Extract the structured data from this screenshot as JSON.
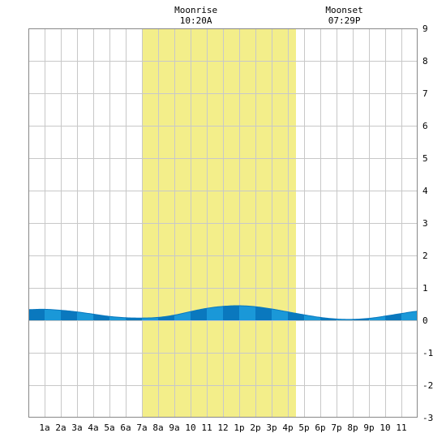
{
  "chart_data": {
    "type": "area",
    "title": "",
    "xlabel": "",
    "ylabel": "",
    "x_tick_labels": [
      "1a",
      "2a",
      "3a",
      "4a",
      "5a",
      "6a",
      "7a",
      "8a",
      "9a",
      "10",
      "11",
      "12",
      "1p",
      "2p",
      "3p",
      "4p",
      "5p",
      "6p",
      "7p",
      "8p",
      "9p",
      "10",
      "11"
    ],
    "xlim": [
      0,
      24
    ],
    "ylim": [
      -3,
      9
    ],
    "y_ticks": [
      9,
      8,
      7,
      6,
      5,
      4,
      3,
      2,
      1,
      0,
      -1,
      -2,
      -3
    ],
    "grid": true,
    "daylight_band": {
      "start_hour": 7.0,
      "end_hour": 16.5
    },
    "annotations": [
      {
        "name": "moonrise",
        "label": "Moonrise",
        "time": "10:20A",
        "hour": 10.33
      },
      {
        "name": "moonset",
        "label": "Moonset",
        "time": "07:29P",
        "hour": 19.48
      }
    ],
    "series": [
      {
        "x": [
          0,
          1,
          2,
          3,
          4,
          5,
          6,
          7,
          8,
          9,
          10,
          11,
          12,
          13,
          14,
          15,
          16,
          17,
          18,
          19,
          20,
          21,
          22,
          23,
          24
        ],
        "y": [
          0.33,
          0.34,
          0.31,
          0.26,
          0.19,
          0.12,
          0.08,
          0.07,
          0.09,
          0.16,
          0.27,
          0.37,
          0.43,
          0.45,
          0.42,
          0.35,
          0.26,
          0.17,
          0.09,
          0.04,
          0.03,
          0.06,
          0.13,
          0.21,
          0.28
        ]
      }
    ],
    "colors": {
      "daylight": "#f3ee8a",
      "tide_light": "#1a98d8",
      "tide_dark": "#0a78be",
      "grid": "#c8c8c8",
      "frame": "#888888"
    }
  }
}
